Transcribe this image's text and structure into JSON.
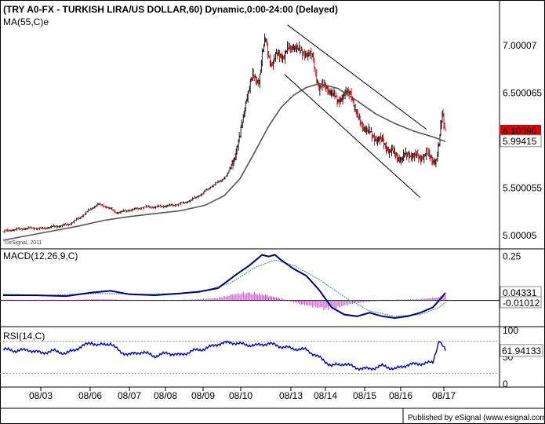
{
  "header": {
    "title": "(TRY A0-FX - TURKISH LIRA/US DOLLAR,60) Dynamic,0:00-24:00 (Delayed)",
    "ma_label": "MA(55,C)e",
    "copyright": "©eSignal, 2011"
  },
  "footer": {
    "published": "Published by eSignal (www.esignal.com)"
  },
  "colors": {
    "up_candle": "#000000",
    "down_candle": "#cc0000",
    "ma_line": "#555555",
    "channel": "#000000",
    "macd_line": "#00007f",
    "macd_signal": "#3a8a8a",
    "macd_hist": "#b040b0",
    "rsi_line": "#0000cc",
    "price_badge": "#e00000"
  },
  "chart_data": [
    {
      "type": "candlestick",
      "panel": "price",
      "x_ticks": [
        "08/03",
        "08/06",
        "08/07",
        "08/08",
        "08/09",
        "08/10",
        "08/13",
        "08/14",
        "08/15",
        "08/16",
        "08/17"
      ],
      "y_ticks": [
        "7.00007",
        "6.500065",
        "5.500055",
        "5.00005"
      ],
      "ylim": [
        4.9,
        7.3
      ],
      "last_price": "6.10090",
      "ma_value": "5.99415",
      "close_path": [
        [
          0,
          5.04
        ],
        [
          3,
          5.06
        ],
        [
          6,
          5.07
        ],
        [
          9,
          5.08
        ],
        [
          12,
          5.07
        ],
        [
          15,
          5.09
        ],
        [
          18,
          5.1
        ],
        [
          21,
          5.12
        ],
        [
          24,
          5.18
        ],
        [
          27,
          5.26
        ],
        [
          30,
          5.33
        ],
        [
          33,
          5.3
        ],
        [
          36,
          5.24
        ],
        [
          39,
          5.26
        ],
        [
          42,
          5.28
        ],
        [
          45,
          5.3
        ],
        [
          48,
          5.3
        ],
        [
          51,
          5.31
        ],
        [
          54,
          5.32
        ],
        [
          57,
          5.34
        ],
        [
          60,
          5.38
        ],
        [
          63,
          5.44
        ],
        [
          66,
          5.52
        ],
        [
          69,
          5.58
        ],
        [
          71,
          5.64
        ],
        [
          73,
          5.8
        ],
        [
          75,
          6.05
        ],
        [
          77,
          6.45
        ],
        [
          79,
          6.68
        ],
        [
          81,
          6.62
        ],
        [
          82,
          6.9
        ],
        [
          83,
          7.08
        ],
        [
          84,
          6.9
        ],
        [
          85,
          6.8
        ],
        [
          87,
          6.92
        ],
        [
          89,
          6.88
        ],
        [
          90,
          6.96
        ],
        [
          92,
          7.0
        ],
        [
          94,
          6.94
        ],
        [
          96,
          6.92
        ],
        [
          98,
          6.88
        ],
        [
          100,
          6.55
        ],
        [
          102,
          6.58
        ],
        [
          104,
          6.5
        ],
        [
          106,
          6.42
        ],
        [
          108,
          6.48
        ],
        [
          110,
          6.52
        ],
        [
          112,
          6.25
        ],
        [
          114,
          6.15
        ],
        [
          116,
          6.08
        ],
        [
          118,
          6.02
        ],
        [
          120,
          6.0
        ],
        [
          122,
          5.9
        ],
        [
          124,
          5.86
        ],
        [
          126,
          5.8
        ],
        [
          128,
          5.86
        ],
        [
          130,
          5.84
        ],
        [
          132,
          5.82
        ],
        [
          134,
          5.86
        ],
        [
          136,
          5.8
        ],
        [
          137,
          5.78
        ],
        [
          138,
          5.95
        ],
        [
          139,
          6.3
        ],
        [
          140,
          6.1
        ]
      ],
      "ma_path": [
        [
          0,
          4.95
        ],
        [
          8,
          5.0
        ],
        [
          16,
          5.05
        ],
        [
          24,
          5.1
        ],
        [
          32,
          5.16
        ],
        [
          40,
          5.2
        ],
        [
          48,
          5.23
        ],
        [
          56,
          5.26
        ],
        [
          64,
          5.32
        ],
        [
          70,
          5.42
        ],
        [
          75,
          5.6
        ],
        [
          80,
          5.9
        ],
        [
          84,
          6.15
        ],
        [
          88,
          6.35
        ],
        [
          92,
          6.48
        ],
        [
          96,
          6.56
        ],
        [
          100,
          6.6
        ],
        [
          106,
          6.55
        ],
        [
          112,
          6.42
        ],
        [
          118,
          6.28
        ],
        [
          124,
          6.18
        ],
        [
          130,
          6.1
        ],
        [
          136,
          6.04
        ],
        [
          140,
          5.99
        ]
      ],
      "channel_upper": [
        [
          90,
          7.22
        ],
        [
          134,
          6.12
        ]
      ],
      "channel_lower": [
        [
          89,
          6.7
        ],
        [
          132,
          5.4
        ]
      ]
    },
    {
      "type": "line",
      "panel": "macd",
      "label": "MACD(12,26,9,C)",
      "y_ticks": [
        "0.25"
      ],
      "ylim": [
        -0.14,
        0.28
      ],
      "macd_value": "0.04331",
      "signal_value": "-0.01012",
      "macd_path": [
        [
          0,
          0.03
        ],
        [
          10,
          0.03
        ],
        [
          20,
          0.025
        ],
        [
          28,
          0.045
        ],
        [
          34,
          0.055
        ],
        [
          40,
          0.035
        ],
        [
          48,
          0.03
        ],
        [
          56,
          0.04
        ],
        [
          62,
          0.05
        ],
        [
          68,
          0.07
        ],
        [
          74,
          0.15
        ],
        [
          78,
          0.2
        ],
        [
          82,
          0.26
        ],
        [
          84,
          0.25
        ],
        [
          86,
          0.26
        ],
        [
          88,
          0.23
        ],
        [
          92,
          0.18
        ],
        [
          96,
          0.14
        ],
        [
          100,
          0.06
        ],
        [
          104,
          -0.04
        ],
        [
          108,
          -0.08
        ],
        [
          112,
          -0.09
        ],
        [
          116,
          -0.07
        ],
        [
          120,
          -0.09
        ],
        [
          124,
          -0.1
        ],
        [
          128,
          -0.09
        ],
        [
          132,
          -0.07
        ],
        [
          136,
          -0.04
        ],
        [
          138,
          0.0
        ],
        [
          140,
          0.043
        ]
      ],
      "signal_path": [
        [
          0,
          0.035
        ],
        [
          14,
          0.03
        ],
        [
          30,
          0.04
        ],
        [
          46,
          0.035
        ],
        [
          62,
          0.045
        ],
        [
          72,
          0.1
        ],
        [
          80,
          0.19
        ],
        [
          86,
          0.23
        ],
        [
          92,
          0.2
        ],
        [
          100,
          0.12
        ],
        [
          108,
          0.02
        ],
        [
          116,
          -0.06
        ],
        [
          124,
          -0.09
        ],
        [
          132,
          -0.08
        ],
        [
          138,
          -0.04
        ],
        [
          140,
          -0.01
        ]
      ],
      "hist_path": [
        [
          0,
          0.005
        ],
        [
          20,
          0.003
        ],
        [
          30,
          0.008
        ],
        [
          40,
          0.004
        ],
        [
          50,
          0.002
        ],
        [
          60,
          0.005
        ],
        [
          68,
          0.015
        ],
        [
          74,
          0.04
        ],
        [
          78,
          0.045
        ],
        [
          82,
          0.035
        ],
        [
          86,
          0.02
        ],
        [
          90,
          0.0
        ],
        [
          94,
          -0.02
        ],
        [
          98,
          -0.035
        ],
        [
          102,
          -0.05
        ],
        [
          106,
          -0.04
        ],
        [
          110,
          -0.02
        ],
        [
          114,
          -0.01
        ],
        [
          120,
          0.0
        ],
        [
          126,
          0.005
        ],
        [
          132,
          0.008
        ],
        [
          138,
          0.02
        ],
        [
          140,
          0.03
        ]
      ]
    },
    {
      "type": "line",
      "panel": "rsi",
      "label": "RSI(14,C)",
      "y_ticks": [
        "100",
        "50",
        "0"
      ],
      "ylim": [
        0,
        100
      ],
      "reference_lines": [
        80,
        20
      ],
      "rsi_value": "61.94133",
      "rsi_path": [
        [
          0,
          65
        ],
        [
          4,
          62
        ],
        [
          8,
          64
        ],
        [
          12,
          58
        ],
        [
          16,
          62
        ],
        [
          20,
          57
        ],
        [
          24,
          68
        ],
        [
          28,
          78
        ],
        [
          30,
          72
        ],
        [
          34,
          76
        ],
        [
          37,
          60
        ],
        [
          40,
          55
        ],
        [
          44,
          60
        ],
        [
          48,
          52
        ],
        [
          52,
          58
        ],
        [
          56,
          54
        ],
        [
          60,
          62
        ],
        [
          64,
          66
        ],
        [
          68,
          75
        ],
        [
          72,
          78
        ],
        [
          76,
          74
        ],
        [
          80,
          72
        ],
        [
          84,
          76
        ],
        [
          88,
          70
        ],
        [
          92,
          66
        ],
        [
          96,
          64
        ],
        [
          100,
          50
        ],
        [
          104,
          34
        ],
        [
          108,
          38
        ],
        [
          112,
          30
        ],
        [
          116,
          28
        ],
        [
          120,
          34
        ],
        [
          124,
          28
        ],
        [
          128,
          36
        ],
        [
          132,
          38
        ],
        [
          136,
          40
        ],
        [
          138,
          82
        ],
        [
          140,
          62
        ]
      ]
    }
  ]
}
